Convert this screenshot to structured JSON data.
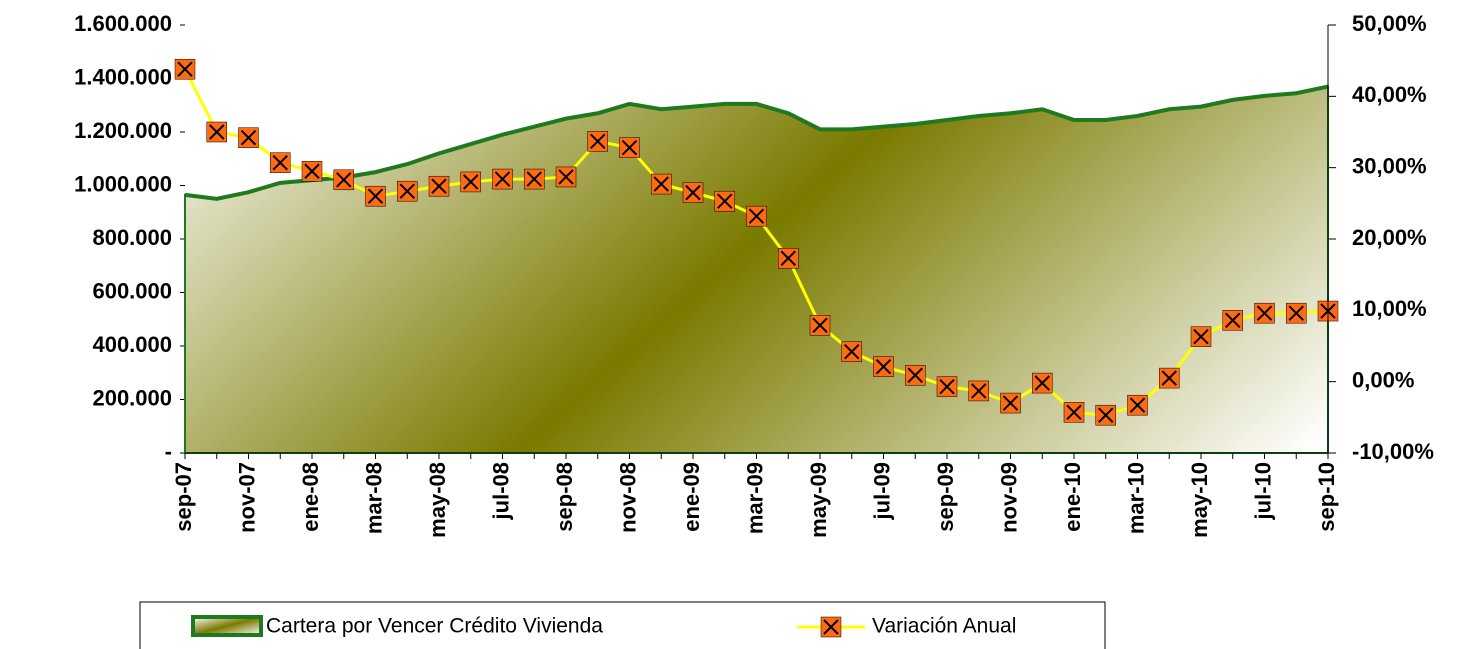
{
  "chart_data": {
    "type": "area_line",
    "categories": [
      "sep-07",
      null,
      "nov-07",
      null,
      "ene-08",
      null,
      "mar-08",
      null,
      "may-08",
      null,
      "jul-08",
      null,
      "sep-08",
      null,
      "nov-08",
      null,
      "ene-09",
      null,
      "mar-09",
      null,
      "may-09",
      null,
      "jul-09",
      null,
      "sep-09",
      null,
      "nov-09",
      null,
      "ene-10",
      null,
      "mar-10",
      null,
      "may-10",
      null,
      "jul-10",
      null,
      "sep-10"
    ],
    "series": [
      {
        "name": "Cartera por Vencer Crédito Vivienda",
        "type": "area",
        "color": "#1f7a1f",
        "fill": "#7a7a00",
        "values": [
          965000,
          950000,
          975000,
          1010000,
          1020000,
          1030000,
          1050000,
          1080000,
          1120000,
          1155000,
          1190000,
          1220000,
          1250000,
          1270000,
          1305000,
          1285000,
          1295000,
          1305000,
          1305000,
          1270000,
          1210000,
          1210000,
          1220000,
          1230000,
          1245000,
          1260000,
          1270000,
          1285000,
          1245000,
          1245000,
          1260000,
          1285000,
          1295000,
          1320000,
          1335000,
          1345000,
          1370000
        ]
      },
      {
        "name": "Variación Anual",
        "type": "line",
        "axis": "y2",
        "color": "#ffff00",
        "marker_color": "#ff6a13",
        "values": [
          43.8,
          35.0,
          34.2,
          30.7,
          29.5,
          28.3,
          26.0,
          26.7,
          27.4,
          28.0,
          28.4,
          28.4,
          28.7,
          33.7,
          32.8,
          27.7,
          26.5,
          25.3,
          23.2,
          17.3,
          7.9,
          4.2,
          2.1,
          0.9,
          -0.7,
          -1.3,
          -3.0,
          -0.2,
          -4.3,
          -4.7,
          -3.3,
          0.5,
          6.3,
          8.6,
          9.6,
          9.6,
          9.9
        ]
      }
    ],
    "ylim": [
      0,
      1600000
    ],
    "yticks": [
      {
        "value": 0,
        "label": "-"
      },
      {
        "value": 200000,
        "label": "200.000"
      },
      {
        "value": 400000,
        "label": "400.000"
      },
      {
        "value": 600000,
        "label": "600.000"
      },
      {
        "value": 800000,
        "label": "800.000"
      },
      {
        "value": 1000000,
        "label": "1.000.000"
      },
      {
        "value": 1200000,
        "label": "1.200.000"
      },
      {
        "value": 1400000,
        "label": "1.400.000"
      },
      {
        "value": 1600000,
        "label": "1.600.000"
      }
    ],
    "y2lim": [
      -10,
      50
    ],
    "y2ticks": [
      {
        "value": -10,
        "label": "-10,00%"
      },
      {
        "value": 0,
        "label": "0,00%"
      },
      {
        "value": 10,
        "label": "10,00%"
      },
      {
        "value": 20,
        "label": "20,00%"
      },
      {
        "value": 30,
        "label": "30,00%"
      },
      {
        "value": 40,
        "label": "40,00%"
      },
      {
        "value": 50,
        "label": "50,00%"
      }
    ],
    "legend": "bottom"
  }
}
